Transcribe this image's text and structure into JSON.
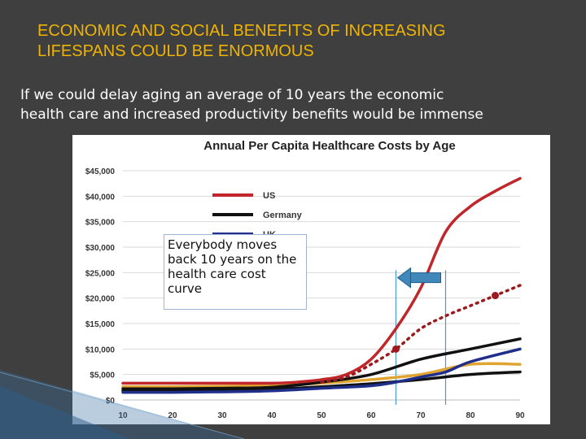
{
  "slide": {
    "title_line1": "ECONOMIC AND SOCIAL BENEFITS OF INCREASING",
    "title_line2": "LIFESPANS COULD BE ENORMOUS",
    "bullet_line1": "If we could delay aging an average of 10 years the economic",
    "bullet_line2": "health care and increased productivity benefits would be immense",
    "callout": "Everybody moves back 10 years on the health care cost curve"
  },
  "colors": {
    "title": "#f0b400",
    "background": "#3f3f3f",
    "us": "#c0262a",
    "germany": "#111111",
    "uk": "#1f2f8a",
    "fourth_series": "#e0a431",
    "shifted": "#9b1a1e",
    "arrow": "#3f88b9",
    "guide": "#4a9ad0"
  },
  "chart_data": {
    "type": "line",
    "title": "Annual Per Capita Healthcare Costs by Age",
    "x": [
      10,
      20,
      30,
      40,
      50,
      60,
      70,
      80,
      90
    ],
    "xlim": [
      10,
      90
    ],
    "ylim": [
      0,
      45000
    ],
    "yticks": [
      0,
      5000,
      10000,
      15000,
      20000,
      25000,
      30000,
      35000,
      40000,
      45000
    ],
    "ytick_labels": [
      "$0",
      "$5,000",
      "$10,000",
      "$15,000",
      "$20,000",
      "$25,000",
      "$30,000",
      "$35,000",
      "$40,000",
      "$45,000"
    ],
    "legend": [
      "US",
      "Germany",
      "UK"
    ],
    "legend_position": "top-left",
    "series": [
      {
        "name": "US",
        "x": [
          10,
          20,
          30,
          40,
          45,
          50,
          55,
          60,
          65,
          70,
          75,
          80,
          85,
          90
        ],
        "values": [
          3300,
          3300,
          3300,
          3300,
          3500,
          4000,
          5000,
          8000,
          14000,
          22000,
          33000,
          38000,
          41000,
          43500
        ]
      },
      {
        "name": "Germany",
        "x": [
          10,
          20,
          30,
          40,
          50,
          60,
          70,
          80,
          90
        ],
        "values": [
          2200,
          2200,
          2300,
          2500,
          3500,
          5000,
          8000,
          10000,
          12000
        ]
      },
      {
        "name": "UK",
        "x": [
          10,
          20,
          30,
          40,
          50,
          60,
          65,
          70,
          75,
          80,
          90
        ],
        "values": [
          1500,
          1500,
          1600,
          1800,
          2300,
          2800,
          3500,
          4500,
          5500,
          7500,
          10000
        ]
      },
      {
        "x": [
          10,
          20,
          30,
          40,
          50,
          60,
          70,
          80,
          90
        ],
        "values": [
          2600,
          2600,
          2700,
          2900,
          3300,
          4000,
          5000,
          7000,
          7000
        ]
      },
      {
        "x": [
          10,
          20,
          30,
          40,
          50,
          60,
          70,
          80,
          90
        ],
        "values": [
          1800,
          1800,
          1900,
          2100,
          2600,
          3200,
          4000,
          5000,
          5500
        ]
      }
    ],
    "shifted_curve": {
      "x": [
        50,
        55,
        60,
        65,
        70,
        75,
        80,
        85,
        90
      ],
      "values": [
        3500,
        4500,
        7000,
        10000,
        14000,
        16500,
        18500,
        20500,
        22500
      ],
      "markers_x": [
        65,
        85
      ]
    },
    "arrow": {
      "from_x": 75,
      "to_x": 65,
      "y": 24000
    },
    "guides_x": [
      65,
      75
    ]
  }
}
